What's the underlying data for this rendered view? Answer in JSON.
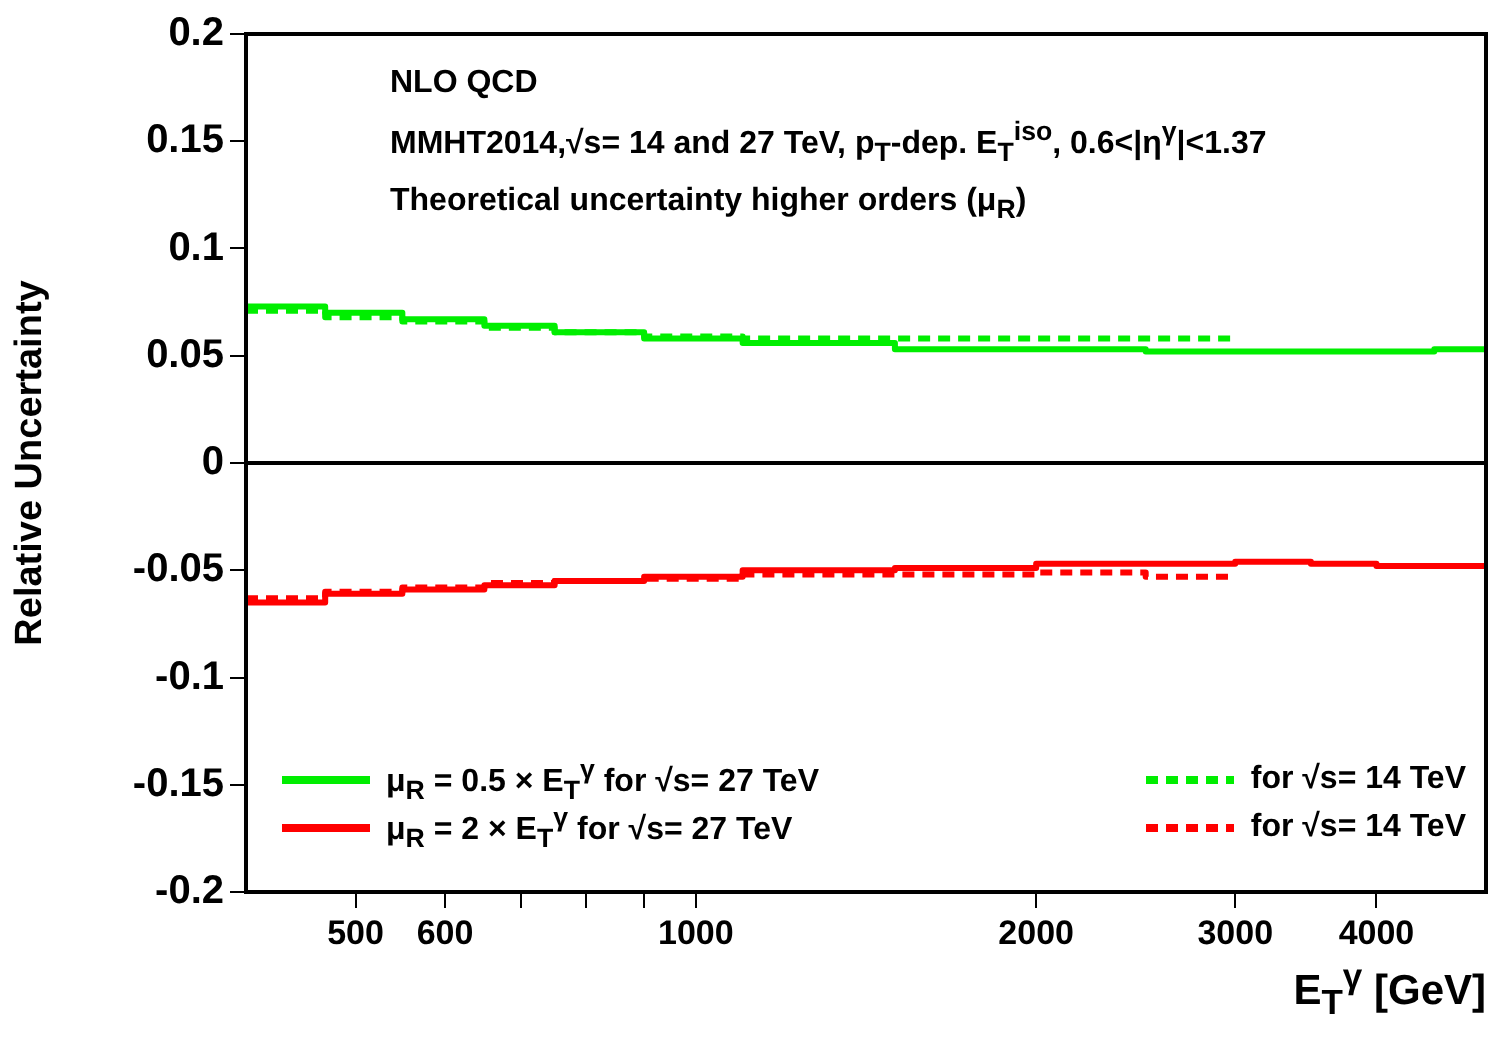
{
  "chart_data": {
    "type": "step",
    "title": "NLO QCD",
    "subtitle": "MMHT2014,√s= 14 and 27 TeV, p$_{T}$-dep. E$_{T}$$^{iso}$, 0.6<|η$^{γ}$|<1.37",
    "annotations": [
      "Theoretical uncertainty higher orders (μ$_{R}$)"
    ],
    "xlabel": "E$_{T}$$^{γ}$ [GeV]",
    "ylabel": "Relative Uncertainty",
    "log": "x",
    "xlim": [
      400,
      5000
    ],
    "xticks": [
      500,
      600,
      {
        "value": 700,
        "label": null
      },
      {
        "value": 800,
        "label": null
      },
      {
        "value": 900,
        "label": null
      },
      1000,
      2000,
      3000,
      4000
    ],
    "ylim": [
      -0.2,
      0.2
    ],
    "yticks": [
      -0.2,
      -0.15,
      -0.1,
      -0.05,
      0,
      0.05,
      0.1,
      0.15,
      0.2
    ],
    "grid": false,
    "legend": "bottom",
    "ref_lines": [
      {
        "axis": "y",
        "value": 0,
        "color": "#000000"
      }
    ],
    "series": [
      {
        "name": "μ$_{R}$ = 0.5 × E$_{T}$$^{γ}$ for √s= 27 TeV",
        "color": "#00ee00",
        "line_style": "solid",
        "x": [
          400,
          470,
          550,
          650,
          750,
          900,
          1100,
          1500,
          2000,
          2500,
          3000,
          3500,
          4000,
          4500,
          5000
        ],
        "values": [
          0.073,
          0.07,
          0.067,
          0.064,
          0.061,
          0.058,
          0.056,
          0.053,
          0.053,
          0.052,
          0.052,
          0.052,
          0.052,
          0.053,
          0.053
        ]
      },
      {
        "name": "μ$_{R}$ = 2 × E$_{T}$$^{γ}$ for √s= 27 TeV",
        "color": "#ff0000",
        "line_style": "solid",
        "x": [
          400,
          470,
          550,
          650,
          750,
          900,
          1100,
          1500,
          2000,
          2500,
          3000,
          3500,
          4000,
          4500,
          5000
        ],
        "values": [
          -0.065,
          -0.061,
          -0.059,
          -0.057,
          -0.055,
          -0.053,
          -0.05,
          -0.049,
          -0.047,
          -0.047,
          -0.046,
          -0.047,
          -0.048,
          -0.048,
          -0.048
        ]
      },
      {
        "name": "for √s= 14 TeV",
        "color": "#00ee00",
        "line_style": "dashed",
        "x": [
          400,
          470,
          550,
          650,
          750,
          900,
          1100,
          1500,
          2000,
          2500,
          3000
        ],
        "values": [
          0.071,
          0.068,
          0.066,
          0.063,
          0.061,
          0.059,
          0.058,
          0.058,
          0.058,
          0.058,
          0.058
        ]
      },
      {
        "name": "for √s= 14 TeV",
        "color": "#ff0000",
        "line_style": "dashed",
        "x": [
          400,
          470,
          550,
          650,
          750,
          900,
          1100,
          1500,
          2000,
          2500,
          3000
        ],
        "values": [
          -0.063,
          -0.06,
          -0.058,
          -0.056,
          -0.055,
          -0.054,
          -0.052,
          -0.052,
          -0.051,
          -0.053,
          -0.053
        ]
      }
    ]
  }
}
